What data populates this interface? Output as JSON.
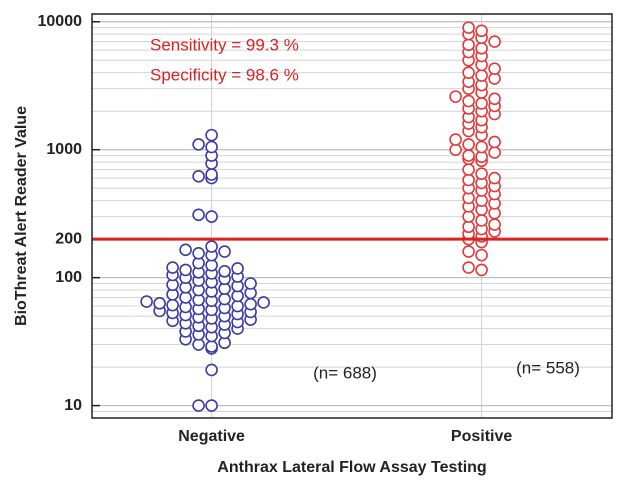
{
  "chart_data": {
    "type": "strip",
    "y_label": "BioThreat Alert Reader Value",
    "x_label": "Anthrax Lateral Flow Assay Testing",
    "categories": [
      "Negative",
      "Positive"
    ],
    "series": [
      {
        "name": "Negative",
        "color": "#3b3ba6",
        "values": [
          10,
          10,
          19,
          28,
          29,
          30,
          31,
          33,
          35,
          36,
          37,
          38,
          40,
          41,
          42,
          43,
          44,
          45,
          46,
          47,
          48,
          49,
          50,
          51,
          52,
          53,
          54,
          55,
          56,
          57,
          58,
          59,
          60,
          61,
          62,
          63,
          64,
          65,
          66,
          67,
          68,
          70,
          72,
          74,
          76,
          78,
          80,
          82,
          84,
          86,
          88,
          90,
          92,
          95,
          98,
          100,
          102,
          105,
          108,
          110,
          112,
          115,
          118,
          120,
          125,
          130,
          150,
          155,
          160,
          165,
          175,
          300,
          310,
          600,
          620,
          640,
          780,
          900,
          1050,
          1100,
          1300
        ]
      },
      {
        "name": "Positive",
        "color": "#e23a3a",
        "values": [
          115,
          120,
          150,
          160,
          190,
          200,
          210,
          220,
          230,
          240,
          250,
          260,
          280,
          300,
          320,
          340,
          360,
          380,
          400,
          420,
          450,
          480,
          500,
          520,
          550,
          580,
          600,
          650,
          700,
          820,
          850,
          880,
          900,
          950,
          1000,
          1050,
          1100,
          1150,
          1200,
          1300,
          1400,
          1500,
          1600,
          1700,
          1800,
          1900,
          2000,
          2100,
          2200,
          2300,
          2400,
          2500,
          2600,
          2800,
          3000,
          3200,
          3400,
          3600,
          3800,
          4000,
          4300,
          4600,
          5000,
          5400,
          5800,
          6200,
          6600,
          7000,
          7500,
          8000,
          8500,
          9000
        ]
      }
    ],
    "threshold": {
      "value": 200,
      "color": "#e02020"
    },
    "annotations": [
      {
        "text": "Sensitivity = 99.3 %",
        "color": "#e02020"
      },
      {
        "text": "Specificity = 98.6 %",
        "color": "#e02020"
      },
      {
        "text": "(n= 688)",
        "color": "#222222"
      },
      {
        "text": "(n= 558)",
        "color": "#222222"
      }
    ],
    "log_scale": true,
    "grid": true,
    "ylim": [
      8,
      11500
    ],
    "yticks": [
      10,
      100,
      200,
      1000,
      10000
    ]
  }
}
